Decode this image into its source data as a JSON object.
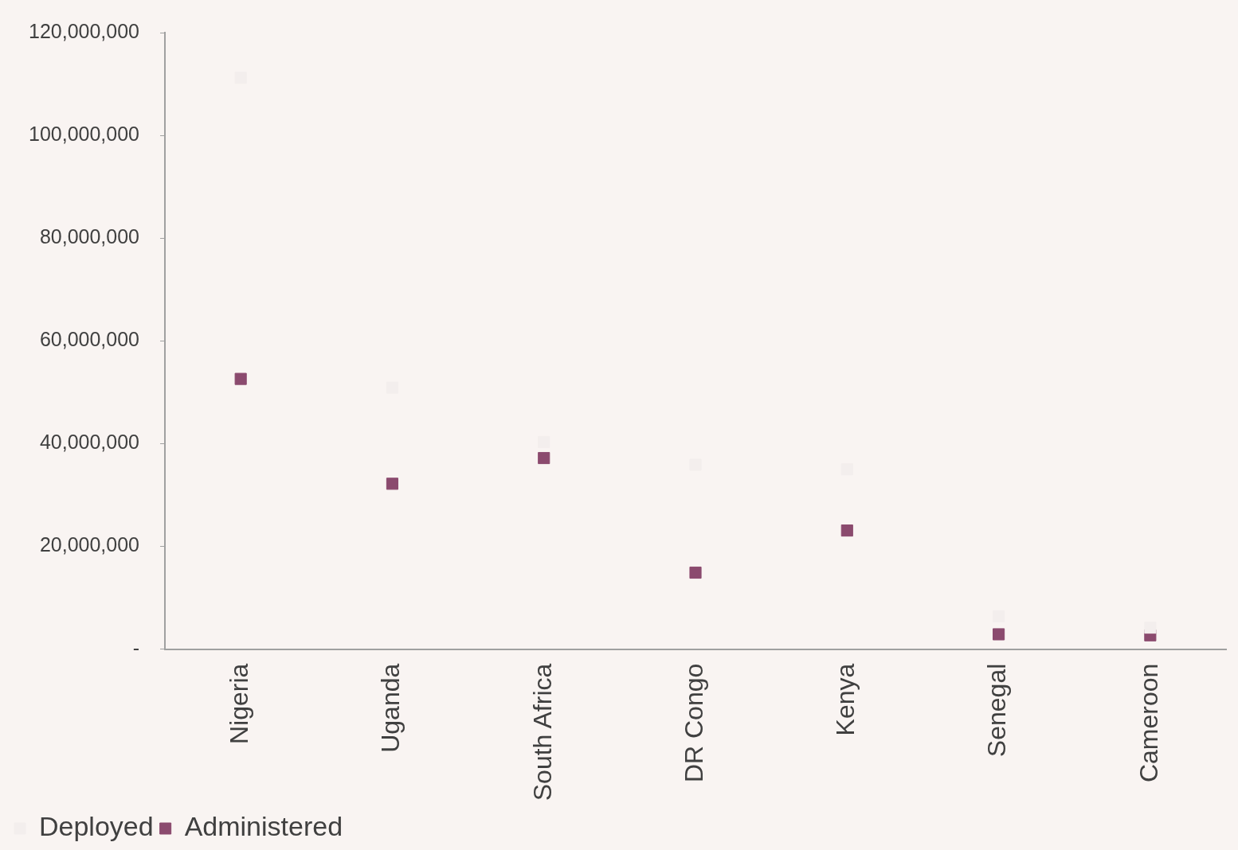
{
  "chart_data": {
    "type": "scatter",
    "categories": [
      "Nigeria",
      "Uganda",
      "South Africa",
      "DR Congo",
      "Kenya",
      "Senegal",
      "Cameroon"
    ],
    "series": [
      {
        "name": "Deployed",
        "color": "#f3eeed",
        "values": [
          111200000,
          50900000,
          40300000,
          35900000,
          35000000,
          6400000,
          4200000
        ]
      },
      {
        "name": "Administered",
        "color": "#8b4a6e",
        "values": [
          52600000,
          32200000,
          37200000,
          14900000,
          23100000,
          2900000,
          2700000
        ]
      }
    ],
    "ylim": [
      0,
      120000000
    ],
    "yticks": [
      {
        "value": 0,
        "label": "-"
      },
      {
        "value": 20000000,
        "label": "20,000,000"
      },
      {
        "value": 40000000,
        "label": "40,000,000"
      },
      {
        "value": 60000000,
        "label": "60,000,000"
      },
      {
        "value": 80000000,
        "label": "80,000,000"
      },
      {
        "value": 100000000,
        "label": "100,000,000"
      },
      {
        "value": 120000000,
        "label": "120,000,000"
      }
    ],
    "marker": "square",
    "grid": false,
    "legend": "bottom left"
  }
}
